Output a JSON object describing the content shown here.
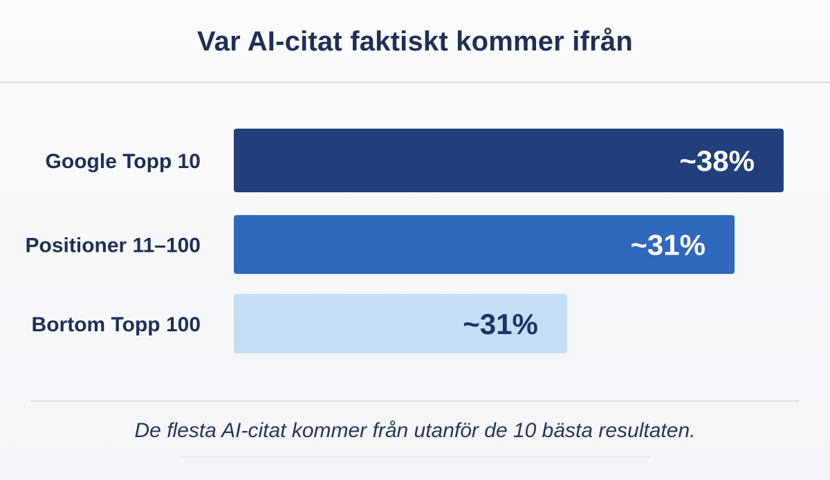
{
  "title": "Var AI-citat faktiskt kommer ifrån",
  "footnote": "De flesta AI-citat kommer från utanför de 10 bästa resultaten.",
  "chart_data": {
    "type": "bar",
    "orientation": "horizontal",
    "categories": [
      "Google Topp 10",
      "Positioner 11–100",
      "Bortom Topp 100"
    ],
    "values": [
      38,
      31,
      31
    ],
    "value_labels": [
      "~38%",
      "~31%",
      "~31%"
    ],
    "bar_colors": [
      "#213f7a",
      "#2f68bd",
      "#c3def5"
    ],
    "label_colors": [
      "#ffffff",
      "#ffffff",
      "#1e3366"
    ],
    "xlim": [
      0,
      38
    ],
    "grid": false,
    "legend": "none"
  }
}
